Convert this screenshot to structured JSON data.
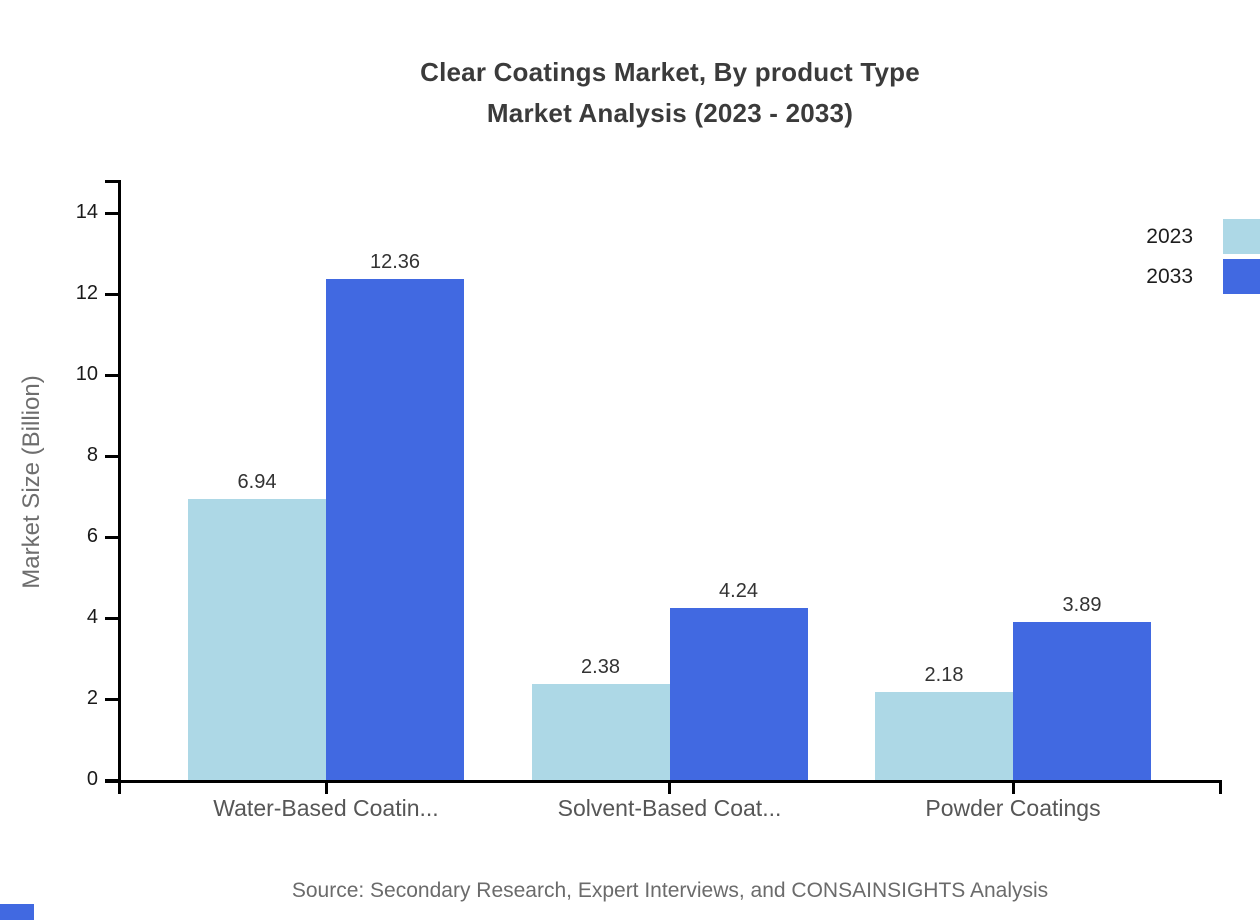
{
  "title": {
    "line1": "Clear Coatings Market, By product Type",
    "line2": "Market Analysis (2023 - 2033)"
  },
  "source_note": "Source: Secondary Research, Expert Interviews, and CONSAINSIGHTS Analysis",
  "chart_data": {
    "type": "bar",
    "title": "Clear Coatings Market, By product Type — Market Analysis (2023 - 2033)",
    "categories": [
      "Water-Based Coatin...",
      "Solvent-Based Coat...",
      "Powder Coatings"
    ],
    "series": [
      {
        "name": "2023",
        "color": "#ADD8E6",
        "values": [
          6.94,
          2.38,
          2.18
        ]
      },
      {
        "name": "2033",
        "color": "#4169E1",
        "values": [
          12.36,
          4.24,
          3.89
        ]
      }
    ],
    "xlabel": "",
    "ylabel": "Market Size (Billion)",
    "ylim": [
      0,
      15
    ],
    "yticks": [
      0,
      2,
      4,
      6,
      8,
      10,
      12,
      14
    ],
    "grid": false,
    "legend_position": "top-right",
    "value_labels_shown": true
  },
  "colors": {
    "series_2023": "#ADD8E6",
    "series_2033": "#4169E1",
    "axis": "#000000",
    "tick_label": "#1a1a1a",
    "value_label": "#333333",
    "category_label": "#565656",
    "title_text": "#3b3b3b",
    "muted_text": "#6b6b6b",
    "brand": "#4169E1"
  }
}
